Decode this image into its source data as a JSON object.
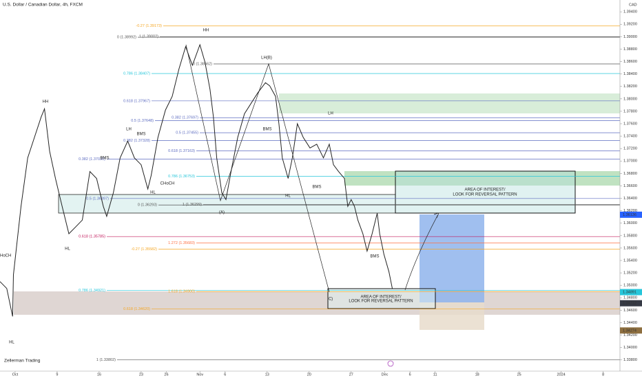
{
  "header": {
    "title": "U.S. Dollar / Canadian Dollar, 4h, FXCM",
    "currency": "CAD",
    "watermark": "Zellerman Trading"
  },
  "chart_data": {
    "type": "line",
    "color": "#222222",
    "x": [
      -1.8,
      -1.0,
      -0.3,
      -0.2,
      0.7,
      1.5,
      2.3,
      3.1,
      3.5,
      4.1,
      4.8,
      5.6,
      6.4,
      7.2,
      8.0,
      8.9,
      9.7,
      10.5,
      10.9,
      11.7,
      12.5,
      13.4,
      14.2,
      15.0,
      15.8,
      16.2,
      17.0,
      17.9,
      18.7,
      19.5,
      20.3,
      21.1,
      22.0,
      22.6,
      23.2,
      23.6,
      24.0,
      24.6,
      25.1,
      25.7,
      26.5,
      27.3,
      28.1,
      28.9,
      29.8,
      30.3,
      31.0,
      31.4,
      31.8,
      32.5,
      33.0,
      33.6,
      34.3,
      35.1,
      35.9,
      36.7,
      37.4,
      37.9,
      38.5,
      39.2,
      39.6,
      40.0,
      40.4,
      40.8,
      41.4,
      41.9,
      42.5,
      43.1,
      43.4,
      43.9,
      44.5,
      44.9
    ],
    "values": [
      1.3506,
      1.3495,
      1.345,
      1.3517,
      1.3627,
      1.3705,
      1.3738,
      1.3771,
      1.3784,
      1.3716,
      1.3672,
      1.3627,
      1.3583,
      1.3594,
      1.3605,
      1.3683,
      1.3672,
      1.3627,
      1.3611,
      1.3649,
      1.3705,
      1.3732,
      1.3705,
      1.3694,
      1.3655,
      1.3677,
      1.3738,
      1.3782,
      1.3804,
      1.3848,
      1.3884,
      1.3854,
      1.3887,
      1.3859,
      1.3815,
      1.3771,
      1.3705,
      1.3649,
      1.3638,
      1.3683,
      1.3738,
      1.3776,
      1.3793,
      1.381,
      1.3826,
      1.3821,
      1.3804,
      1.376,
      1.3705,
      1.3672,
      1.3705,
      1.376,
      1.3738,
      1.3721,
      1.3727,
      1.3705,
      1.3727,
      1.3694,
      1.3683,
      1.3672,
      1.3627,
      1.3638,
      1.3627,
      1.3605,
      1.3583,
      1.3555,
      1.3583,
      1.3616,
      1.3583,
      1.355,
      1.3522,
      1.3495
    ],
    "xlim": [
      -1.8,
      72
    ],
    "xticks": [
      {
        "value": 0,
        "label": "Oct"
      },
      {
        "value": 5,
        "label": "9"
      },
      {
        "value": 10,
        "label": "16"
      },
      {
        "value": 15,
        "label": "23"
      },
      {
        "value": 18,
        "label": "26"
      },
      {
        "value": 22,
        "label": "Nov"
      },
      {
        "value": 25,
        "label": "6"
      },
      {
        "value": 30,
        "label": "13"
      },
      {
        "value": 35,
        "label": "20"
      },
      {
        "value": 40,
        "label": "27"
      },
      {
        "value": 44,
        "label": "Dec"
      },
      {
        "value": 47,
        "label": "6"
      },
      {
        "value": 50,
        "label": "11"
      },
      {
        "value": 55,
        "label": "18"
      },
      {
        "value": 60,
        "label": "25"
      },
      {
        "value": 65,
        "label": "2024"
      },
      {
        "value": 70,
        "label": "8"
      }
    ],
    "ylim": [
      1.3362,
      1.3959
    ],
    "yticks": [
      {
        "value": 1.394,
        "label": "1.39400"
      },
      {
        "value": 1.392,
        "label": "1.39200"
      },
      {
        "value": 1.39,
        "label": "1.39000"
      },
      {
        "value": 1.388,
        "label": "1.38800"
      },
      {
        "value": 1.386,
        "label": "1.38600"
      },
      {
        "value": 1.384,
        "label": "1.38400"
      },
      {
        "value": 1.382,
        "label": "1.38200"
      },
      {
        "value": 1.38,
        "label": "1.38000"
      },
      {
        "value": 1.378,
        "label": "1.37800"
      },
      {
        "value": 1.376,
        "label": "1.37600"
      },
      {
        "value": 1.374,
        "label": "1.37400"
      },
      {
        "value": 1.372,
        "label": "1.37200"
      },
      {
        "value": 1.37,
        "label": "1.37000"
      },
      {
        "value": 1.368,
        "label": "1.36800"
      },
      {
        "value": 1.366,
        "label": "1.36600"
      },
      {
        "value": 1.364,
        "label": "1.36400"
      },
      {
        "value": 1.362,
        "label": "1.36200"
      },
      {
        "value": 1.36,
        "label": "1.36000"
      },
      {
        "value": 1.358,
        "label": "1.35800"
      },
      {
        "value": 1.356,
        "label": "1.35600"
      },
      {
        "value": 1.354,
        "label": "1.35400"
      },
      {
        "value": 1.352,
        "label": "1.35200"
      },
      {
        "value": 1.35,
        "label": "1.35000"
      },
      {
        "value": 1.348,
        "label": "1.34800"
      },
      {
        "value": 1.346,
        "label": "1.34600"
      },
      {
        "value": 1.344,
        "label": "1.34400"
      },
      {
        "value": 1.342,
        "label": "1.34200"
      },
      {
        "value": 1.34,
        "label": "1.34000"
      },
      {
        "value": 1.338,
        "label": "1.33800"
      }
    ],
    "levels": [
      {
        "label": "-0.27 (1.39173)",
        "price": 1.39173,
        "color": "#f5a623"
      },
      {
        "label": "0 (1.38992)",
        "price": 1.38992,
        "color": "#555555"
      },
      {
        "label": "1 (1.39002)",
        "price": 1.39002,
        "color": "#555555"
      },
      {
        "label": "0 (1.38562)",
        "price": 1.38562,
        "color": "#555555"
      },
      {
        "label": "0.786 (1.38407)",
        "price": 1.38407,
        "color": "#26c6da"
      },
      {
        "label": "0.618 (1.37967)",
        "price": 1.37967,
        "color": "#5c6bc0"
      },
      {
        "label": "0.5 (1.37648)",
        "price": 1.37648,
        "color": "#5c6bc0"
      },
      {
        "label": "0.382 (1.37697)",
        "price": 1.37697,
        "color": "#5c6bc0"
      },
      {
        "label": "0.5 (1.37455)",
        "price": 1.37455,
        "color": "#5c6bc0"
      },
      {
        "label": "0.382 (1.37328)",
        "price": 1.37328,
        "color": "#5c6bc0"
      },
      {
        "label": "0.618 (1.37163)",
        "price": 1.37163,
        "color": "#5c6bc0"
      },
      {
        "label": "0.382 (1.37031)",
        "price": 1.37031,
        "color": "#5c6bc0"
      },
      {
        "label": "0.786 (1.36753)",
        "price": 1.36753,
        "color": "#26c6da"
      },
      {
        "label": "0.5 (1.36397)",
        "price": 1.36397,
        "color": "#5c6bc0"
      },
      {
        "label": "0 (1.36293)",
        "price": 1.36293,
        "color": "#555555"
      },
      {
        "label": "1 (1.36299)",
        "price": 1.36299,
        "color": "#555555"
      },
      {
        "label": "0.618 (1.35785)",
        "price": 1.35785,
        "color": "#c2185b"
      },
      {
        "label": "1.272 (1.35683)",
        "price": 1.35683,
        "color": "#ff7043"
      },
      {
        "label": "-0.27 (1.35582)",
        "price": 1.35582,
        "color": "#f5a623"
      },
      {
        "label": "0.786 (1.34921)",
        "price": 1.34921,
        "color": "#26c6da"
      },
      {
        "label": "1.618 (1.34900)",
        "price": 1.349,
        "color": "#f5a623"
      },
      {
        "label": "0.618 (1.34620)",
        "price": 1.3462,
        "color": "#f5a623"
      },
      {
        "label": "1 (1.33802)",
        "price": 1.33802,
        "color": "#555555"
      }
    ],
    "price_tags": [
      {
        "value": 1.36136,
        "color": "#2962ff"
      },
      {
        "value": 1.34891,
        "color": "#26c6da"
      },
      {
        "value": 1.34712,
        "color": "#363a45"
      },
      {
        "value": 1.34274,
        "color": "#8d6e3f"
      }
    ],
    "annotations": [
      "HH",
      "HL",
      "CHoCH",
      "HL",
      "LH",
      "BMS",
      "BMS",
      "HL",
      "CHoCH",
      "HH",
      "LH(B)",
      "(A)",
      "BMS",
      "LH",
      "HL",
      "BMS",
      "BMS",
      "C)",
      "AREA OF INTEREST/",
      "LOOK FOR REVERSAL PATTERN",
      "AREA OF INTEREST/",
      "LOOK FOR REVERSAL PATTERN"
    ]
  }
}
